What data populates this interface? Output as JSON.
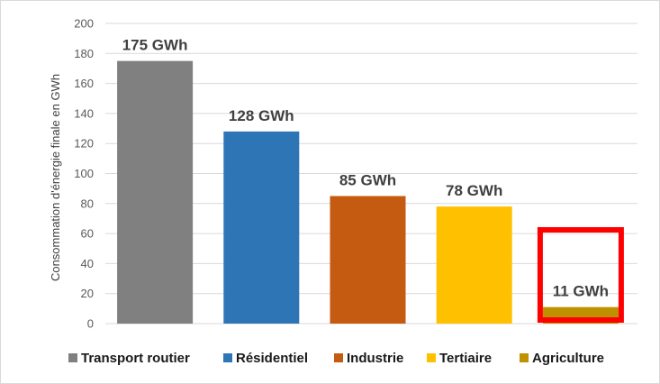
{
  "chart_data": {
    "type": "bar",
    "title": "",
    "xlabel": "",
    "ylabel": "Consommation d'énergie finale en GWh",
    "ylim": [
      0,
      200
    ],
    "yticks": [
      0,
      20,
      40,
      60,
      80,
      100,
      120,
      140,
      160,
      180,
      200
    ],
    "grid": true,
    "legend_position": "bottom",
    "categories": [
      "Transport routier",
      "Résidentiel",
      "Industrie",
      "Tertiaire",
      "Agriculture"
    ],
    "values": [
      175,
      128,
      85,
      78,
      11
    ],
    "data_labels": [
      "175 GWh",
      "128 GWh",
      "85 GWh",
      "78 GWh",
      "11 GWh"
    ],
    "colors": [
      "#808080",
      "#2e75b6",
      "#c55a11",
      "#ffc000",
      "#bf9000"
    ],
    "highlight_category": "Agriculture",
    "highlight_color": "#ff0000"
  }
}
